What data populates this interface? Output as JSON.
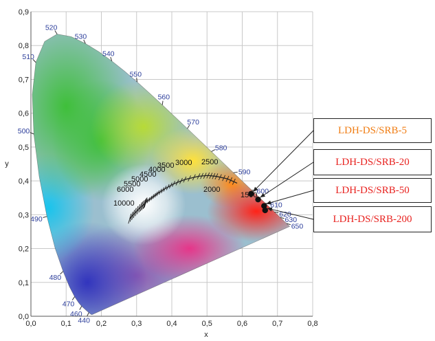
{
  "chart_data": {
    "type": "scatter",
    "title": "",
    "xlabel": "x",
    "ylabel": "y",
    "xlim": [
      0,
      0.8
    ],
    "ylim": [
      0,
      0.9
    ],
    "x_ticks": [
      "0,0",
      "0,1",
      "0,2",
      "0,3",
      "0,4",
      "0,5",
      "0,6",
      "0,7",
      "0,8"
    ],
    "y_ticks": [
      "0,0",
      "0,1",
      "0,2",
      "0,3",
      "0,4",
      "0,5",
      "0,6",
      "0,7",
      "0,8",
      "0,9"
    ],
    "grid": true,
    "locus_labels": [
      {
        "text": "440",
        "x": 0.1644,
        "y": 0.0109
      },
      {
        "text": "460",
        "x": 0.144,
        "y": 0.0297
      },
      {
        "text": "470",
        "x": 0.1241,
        "y": 0.0578
      },
      {
        "text": "480",
        "x": 0.0913,
        "y": 0.1327
      },
      {
        "text": "490",
        "x": 0.0454,
        "y": 0.295
      },
      {
        "text": "500",
        "x": 0.0082,
        "y": 0.5384
      },
      {
        "text": "510",
        "x": 0.0139,
        "y": 0.7502
      },
      {
        "text": "520",
        "x": 0.0743,
        "y": 0.8338
      },
      {
        "text": "530",
        "x": 0.1547,
        "y": 0.8059
      },
      {
        "text": "540",
        "x": 0.2296,
        "y": 0.7543
      },
      {
        "text": "550",
        "x": 0.3016,
        "y": 0.6923
      },
      {
        "text": "560",
        "x": 0.3731,
        "y": 0.6245
      },
      {
        "text": "570",
        "x": 0.4441,
        "y": 0.5547
      },
      {
        "text": "580",
        "x": 0.5125,
        "y": 0.4866
      },
      {
        "text": "590",
        "x": 0.5752,
        "y": 0.4242
      },
      {
        "text": "600",
        "x": 0.627,
        "y": 0.3725
      },
      {
        "text": "610",
        "x": 0.6658,
        "y": 0.334
      },
      {
        "text": "620",
        "x": 0.6915,
        "y": 0.3083
      },
      {
        "text": "630",
        "x": 0.7079,
        "y": 0.292
      },
      {
        "text": "650",
        "x": 0.726,
        "y": 0.274
      }
    ],
    "planckian_labels": [
      "10000",
      "6000",
      "5500",
      "5000",
      "4500",
      "4000",
      "3500",
      "3000",
      "2500",
      "2000",
      "1500"
    ],
    "series": [
      {
        "name": "LDH-DS/SRB-5",
        "x": 0.625,
        "y": 0.362,
        "color": "#f07c12"
      },
      {
        "name": "LDH-DS/SRB-20",
        "x": 0.645,
        "y": 0.345,
        "color": "#e8221f"
      },
      {
        "name": "LDH-DS/SRB-50",
        "x": 0.662,
        "y": 0.326,
        "color": "#e8221f"
      },
      {
        "name": "LDH-DS/SRB-200",
        "x": 0.665,
        "y": 0.313,
        "color": "#e8221f"
      }
    ]
  }
}
